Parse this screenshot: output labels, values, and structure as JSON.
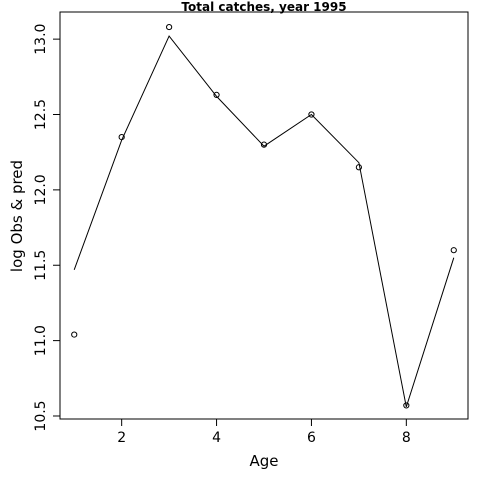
{
  "chart_data": {
    "type": "line",
    "title": "Total catches, year 1995",
    "xlabel": "Age",
    "ylabel": "log Obs & pred",
    "xlim": [
      0.7,
      9.3
    ],
    "ylim": [
      10.48,
      13.18
    ],
    "xticks": [
      2,
      4,
      6,
      8
    ],
    "yticks": [
      10.5,
      11.0,
      11.5,
      12.0,
      12.5,
      13.0
    ],
    "ytick_labels": [
      "10.5",
      "11.0",
      "11.5",
      "12.0",
      "12.5",
      "13.0"
    ],
    "grid": false,
    "series": [
      {
        "kind": "line",
        "x": [
          1,
          2,
          3,
          4,
          5,
          6,
          7,
          8,
          9
        ],
        "y": [
          11.47,
          12.33,
          13.02,
          12.62,
          12.29,
          12.5,
          12.18,
          10.56,
          11.55
        ]
      },
      {
        "kind": "points",
        "x": [
          1,
          2,
          3,
          4,
          5,
          6,
          7,
          8,
          9
        ],
        "y": [
          11.04,
          12.35,
          13.08,
          12.63,
          12.3,
          12.5,
          12.15,
          10.57,
          11.6
        ]
      }
    ]
  }
}
